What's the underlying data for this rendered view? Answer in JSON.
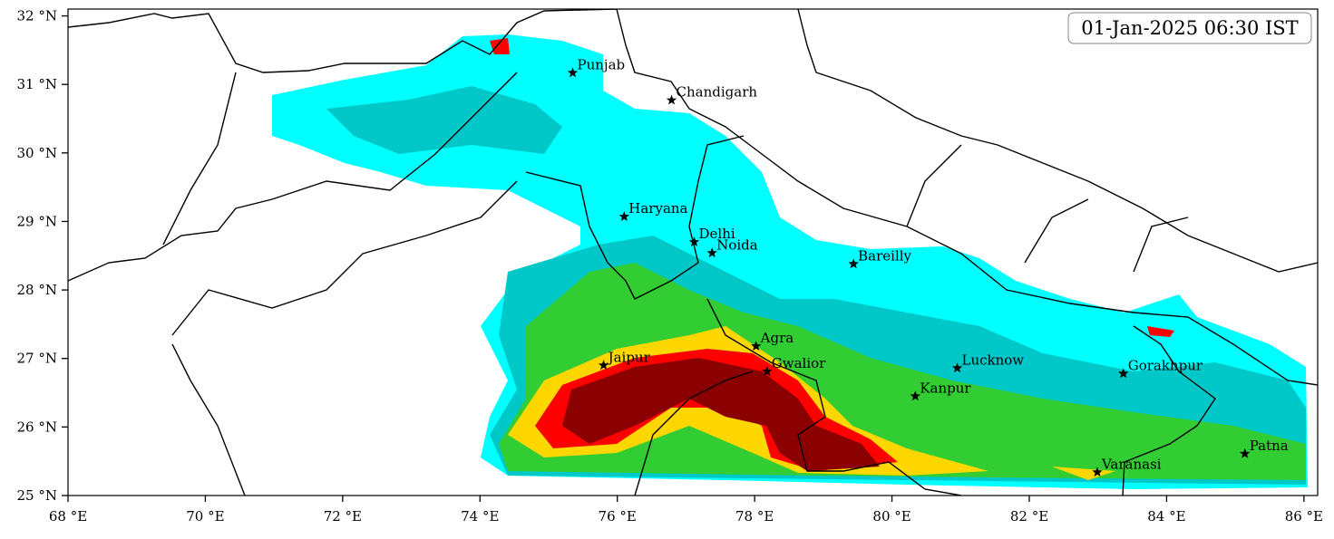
{
  "chart_data": {
    "type": "map",
    "title": "01-Jan-2025 06:30 IST",
    "xlim": [
      68,
      86.2
    ],
    "ylim": [
      25,
      32.1
    ],
    "xticks": [
      {
        "value": 68,
        "label": "68 °E"
      },
      {
        "value": 70,
        "label": "70 °E"
      },
      {
        "value": 72,
        "label": "72 °E"
      },
      {
        "value": 74,
        "label": "74 °E"
      },
      {
        "value": 76,
        "label": "76 °E"
      },
      {
        "value": 78,
        "label": "78 °E"
      },
      {
        "value": 80,
        "label": "80 °E"
      },
      {
        "value": 82,
        "label": "82 °E"
      },
      {
        "value": 84,
        "label": "84 °E"
      },
      {
        "value": 86,
        "label": "86 °E"
      }
    ],
    "yticks": [
      {
        "value": 25,
        "label": "25 °N"
      },
      {
        "value": 26,
        "label": "26 °N"
      },
      {
        "value": 27,
        "label": "27 °N"
      },
      {
        "value": 28,
        "label": "28 °N"
      },
      {
        "value": 29,
        "label": "29 °N"
      },
      {
        "value": 30,
        "label": "30 °N"
      },
      {
        "value": 31,
        "label": "31 °N"
      },
      {
        "value": 32,
        "label": "32 °N"
      }
    ],
    "cities": [
      {
        "name": "Punjab",
        "lon": 75.35,
        "lat": 31.17
      },
      {
        "name": "Chandigarh",
        "lon": 76.79,
        "lat": 30.77
      },
      {
        "name": "Haryana",
        "lon": 76.1,
        "lat": 29.07
      },
      {
        "name": "Delhi",
        "lon": 77.12,
        "lat": 28.7
      },
      {
        "name": "Noida",
        "lon": 77.38,
        "lat": 28.54
      },
      {
        "name": "Bareilly",
        "lon": 79.44,
        "lat": 28.38
      },
      {
        "name": "Agra",
        "lon": 78.02,
        "lat": 27.18
      },
      {
        "name": "Jaipur",
        "lon": 75.8,
        "lat": 26.9
      },
      {
        "name": "Gwalior",
        "lon": 78.18,
        "lat": 26.81
      },
      {
        "name": "Lucknow",
        "lon": 80.95,
        "lat": 26.86
      },
      {
        "name": "Gorakhpur",
        "lon": 83.37,
        "lat": 26.78
      },
      {
        "name": "Kanpur",
        "lon": 80.34,
        "lat": 26.45
      },
      {
        "name": "Patna",
        "lon": 85.14,
        "lat": 25.61
      },
      {
        "name": "Varanasi",
        "lon": 82.99,
        "lat": 25.34
      }
    ]
  }
}
